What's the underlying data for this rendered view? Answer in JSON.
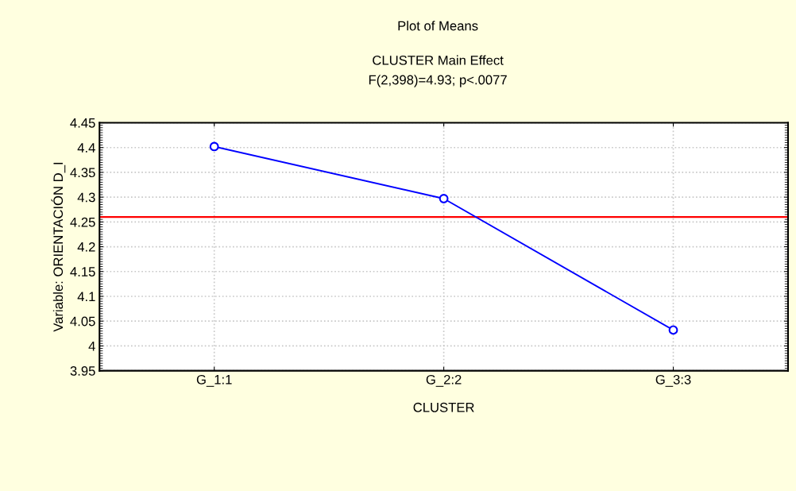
{
  "chart_data": {
    "type": "line",
    "title": "Plot of Means",
    "subtitle": "CLUSTER Main Effect\nF(2,398)=4.93; p<.0077",
    "xlabel": "CLUSTER",
    "ylabel": "Variable: ORIENTACIÓN D_I",
    "categories": [
      "G_1:1",
      "G_2:2",
      "G_3:3"
    ],
    "series": [
      {
        "color": "#0000ff",
        "values": [
          4.402,
          4.297,
          4.032
        ]
      }
    ],
    "ylim": [
      3.95,
      4.45
    ],
    "yticks": [
      3.95,
      4,
      4.05,
      4.1,
      4.15,
      4.2,
      4.25,
      4.3,
      4.35,
      4.4,
      4.45
    ],
    "ref_lines": [
      {
        "axis": "y",
        "value": 4.26,
        "color": "#ff0000"
      }
    ],
    "grid": true,
    "marker": "circle",
    "line_style": "solid"
  }
}
